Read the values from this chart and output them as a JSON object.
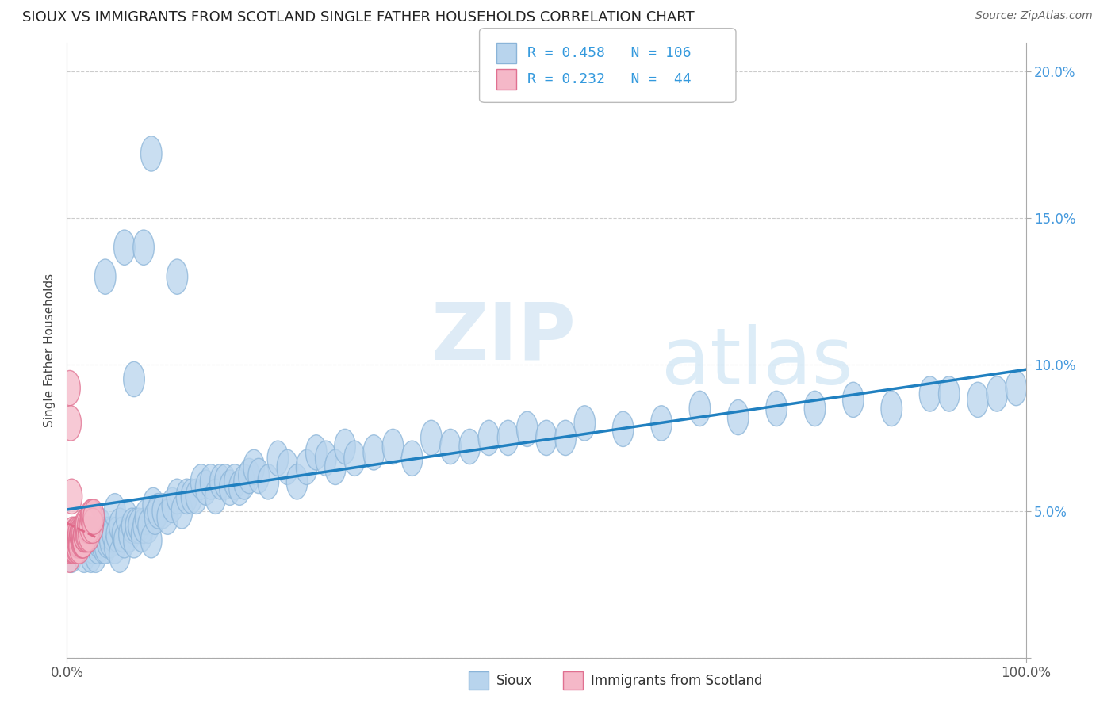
{
  "title": "SIOUX VS IMMIGRANTS FROM SCOTLAND SINGLE FATHER HOUSEHOLDS CORRELATION CHART",
  "source": "Source: ZipAtlas.com",
  "ylabel": "Single Father Households",
  "xlim": [
    0,
    1.0
  ],
  "ylim": [
    0,
    0.21
  ],
  "xticks": [
    0.0,
    1.0
  ],
  "xticklabels": [
    "0.0%",
    "100.0%"
  ],
  "yticks": [
    0.0,
    0.05,
    0.1,
    0.15,
    0.2
  ],
  "yticklabels": [
    "",
    "5.0%",
    "10.0%",
    "15.0%",
    "20.0%"
  ],
  "sioux_color": "#b8d4ed",
  "sioux_edge": "#8ab4d8",
  "scotland_color": "#f5b8c8",
  "scotland_edge": "#e07090",
  "trend_blue": "#2080c0",
  "trend_pink": "#e06888",
  "R_sioux": 0.458,
  "N_sioux": 106,
  "R_scotland": 0.232,
  "N_scotland": 44,
  "watermark_zip": "ZIP",
  "watermark_atlas": "atlas",
  "sioux_x": [
    0.005,
    0.01,
    0.015,
    0.018,
    0.02,
    0.022,
    0.025,
    0.025,
    0.027,
    0.028,
    0.03,
    0.03,
    0.032,
    0.033,
    0.035,
    0.035,
    0.038,
    0.04,
    0.04,
    0.042,
    0.044,
    0.045,
    0.048,
    0.05,
    0.05,
    0.052,
    0.055,
    0.055,
    0.058,
    0.06,
    0.062,
    0.065,
    0.068,
    0.07,
    0.072,
    0.075,
    0.078,
    0.08,
    0.082,
    0.085,
    0.088,
    0.09,
    0.092,
    0.095,
    0.1,
    0.105,
    0.11,
    0.115,
    0.12,
    0.125,
    0.13,
    0.135,
    0.14,
    0.145,
    0.15,
    0.155,
    0.16,
    0.165,
    0.17,
    0.175,
    0.18,
    0.185,
    0.19,
    0.195,
    0.2,
    0.21,
    0.22,
    0.23,
    0.24,
    0.25,
    0.26,
    0.27,
    0.28,
    0.29,
    0.3,
    0.32,
    0.34,
    0.36,
    0.38,
    0.4,
    0.42,
    0.44,
    0.46,
    0.48,
    0.5,
    0.52,
    0.54,
    0.58,
    0.62,
    0.66,
    0.7,
    0.74,
    0.78,
    0.82,
    0.86,
    0.9,
    0.92,
    0.95,
    0.97,
    0.99,
    0.04,
    0.06,
    0.07,
    0.08,
    0.088,
    0.115
  ],
  "sioux_y": [
    0.035,
    0.04,
    0.038,
    0.035,
    0.04,
    0.038,
    0.04,
    0.035,
    0.038,
    0.04,
    0.035,
    0.042,
    0.038,
    0.04,
    0.04,
    0.045,
    0.038,
    0.038,
    0.042,
    0.04,
    0.042,
    0.04,
    0.042,
    0.038,
    0.05,
    0.042,
    0.045,
    0.035,
    0.042,
    0.04,
    0.048,
    0.042,
    0.045,
    0.04,
    0.045,
    0.045,
    0.042,
    0.045,
    0.048,
    0.045,
    0.04,
    0.052,
    0.048,
    0.05,
    0.05,
    0.048,
    0.052,
    0.055,
    0.05,
    0.055,
    0.055,
    0.055,
    0.06,
    0.058,
    0.06,
    0.055,
    0.06,
    0.06,
    0.058,
    0.06,
    0.058,
    0.06,
    0.062,
    0.065,
    0.062,
    0.06,
    0.068,
    0.065,
    0.06,
    0.065,
    0.07,
    0.068,
    0.065,
    0.072,
    0.068,
    0.07,
    0.072,
    0.068,
    0.075,
    0.072,
    0.072,
    0.075,
    0.075,
    0.078,
    0.075,
    0.075,
    0.08,
    0.078,
    0.08,
    0.085,
    0.082,
    0.085,
    0.085,
    0.088,
    0.085,
    0.09,
    0.09,
    0.088,
    0.09,
    0.092,
    0.13,
    0.14,
    0.095,
    0.14,
    0.172,
    0.13
  ],
  "scotland_x": [
    0.002,
    0.003,
    0.004,
    0.005,
    0.005,
    0.006,
    0.006,
    0.007,
    0.007,
    0.008,
    0.008,
    0.009,
    0.009,
    0.01,
    0.01,
    0.011,
    0.011,
    0.012,
    0.012,
    0.013,
    0.013,
    0.014,
    0.014,
    0.015,
    0.015,
    0.016,
    0.016,
    0.017,
    0.017,
    0.018,
    0.018,
    0.019,
    0.02,
    0.02,
    0.021,
    0.022,
    0.023,
    0.024,
    0.025,
    0.026,
    0.027,
    0.028,
    0.003,
    0.004
  ],
  "scotland_y": [
    0.04,
    0.035,
    0.038,
    0.04,
    0.055,
    0.038,
    0.042,
    0.038,
    0.04,
    0.038,
    0.04,
    0.04,
    0.042,
    0.038,
    0.042,
    0.038,
    0.04,
    0.04,
    0.042,
    0.04,
    0.038,
    0.042,
    0.042,
    0.04,
    0.042,
    0.04,
    0.042,
    0.04,
    0.04,
    0.042,
    0.042,
    0.045,
    0.042,
    0.045,
    0.042,
    0.045,
    0.042,
    0.045,
    0.048,
    0.048,
    0.045,
    0.048,
    0.092,
    0.08
  ]
}
